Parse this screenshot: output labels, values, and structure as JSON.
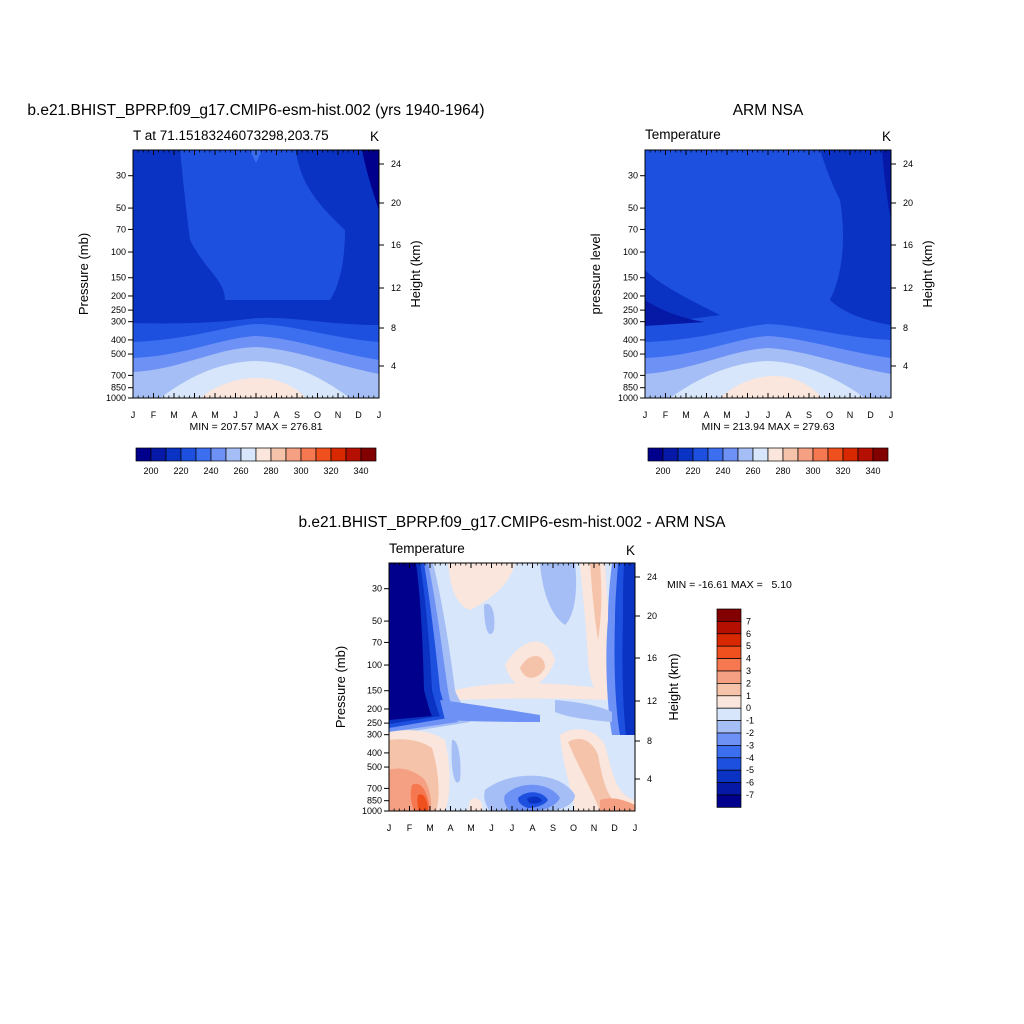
{
  "chart_data": [
    {
      "type": "contour",
      "title": "b.e21.BHIST_BPRP.f09_g17.CMIP6-esm-hist.002 (yrs 1940-1964)",
      "left_label": "T at 71.15183246073298,203.75",
      "right_label": "K",
      "ylabel": "Pressure (mb)",
      "ylabel_right": "Height (km)",
      "x_ticks": [
        "J",
        "F",
        "M",
        "A",
        "M",
        "J",
        "J",
        "A",
        "S",
        "O",
        "N",
        "D",
        "J"
      ],
      "y_ticks": [
        "30",
        "50",
        "70",
        "100",
        "150",
        "200",
        "250",
        "300",
        "400",
        "500",
        "700",
        "850",
        "1000"
      ],
      "y_ticks_right": [
        "24",
        "20",
        "16",
        "12",
        "8",
        "4"
      ],
      "min": 207.57,
      "max": 276.81,
      "minmax_text": "MIN = 207.57 MAX = 276.81",
      "colorbar_labels": [
        "200",
        "220",
        "240",
        "260",
        "280",
        "300",
        "320",
        "340"
      ]
    },
    {
      "type": "contour",
      "title": "ARM NSA",
      "left_label": "Temperature",
      "right_label": "K",
      "ylabel": "pressure level",
      "ylabel_right": "Height (km)",
      "x_ticks": [
        "J",
        "F",
        "M",
        "A",
        "M",
        "J",
        "J",
        "A",
        "S",
        "O",
        "N",
        "D",
        "J"
      ],
      "y_ticks": [
        "30",
        "50",
        "70",
        "100",
        "150",
        "200",
        "250",
        "300",
        "400",
        "500",
        "700",
        "850",
        "1000"
      ],
      "y_ticks_right": [
        "24",
        "20",
        "16",
        "12",
        "8",
        "4"
      ],
      "min": 213.94,
      "max": 279.63,
      "minmax_text": "MIN = 213.94 MAX = 279.63",
      "colorbar_labels": [
        "200",
        "220",
        "240",
        "260",
        "280",
        "300",
        "320",
        "340"
      ]
    },
    {
      "type": "contour",
      "title": "b.e21.BHIST_BPRP.f09_g17.CMIP6-esm-hist.002 - ARM NSA",
      "left_label": "Temperature",
      "right_label": "K",
      "ylabel": "Pressure (mb)",
      "ylabel_right": "Height (km)",
      "x_ticks": [
        "J",
        "F",
        "M",
        "A",
        "M",
        "J",
        "J",
        "A",
        "S",
        "O",
        "N",
        "D",
        "J"
      ],
      "y_ticks": [
        "30",
        "50",
        "70",
        "100",
        "150",
        "200",
        "250",
        "300",
        "400",
        "500",
        "700",
        "850",
        "1000"
      ],
      "y_ticks_right": [
        "24",
        "20",
        "16",
        "12",
        "8",
        "4"
      ],
      "min": -16.61,
      "max": 5.1,
      "minmax_text": "MIN = -16.61 MAX =   5.10",
      "colorbar_labels": [
        "7",
        "6",
        "5",
        "4",
        "3",
        "2",
        "1",
        "0",
        "-1",
        "-2",
        "-3",
        "-4",
        "-5",
        "-6",
        "-7"
      ]
    }
  ],
  "colors": {
    "abs_palette": [
      "#00008c",
      "#0519a6",
      "#0a32c3",
      "#1e50e0",
      "#3c6ef0",
      "#6e91f5",
      "#a5bef5",
      "#d7e6fa",
      "#fae6dc",
      "#f5c3aa",
      "#f5a082",
      "#f57850",
      "#f0501e",
      "#d72800",
      "#b40f00",
      "#820000"
    ],
    "diff_palette": [
      "#820000",
      "#b40f00",
      "#d72800",
      "#f0501e",
      "#f57850",
      "#f5a082",
      "#f5c3aa",
      "#fae6dc",
      "#d7e6fa",
      "#a5bef5",
      "#6e91f5",
      "#3c6ef0",
      "#1e50e0",
      "#0a32c3",
      "#0519a6",
      "#00008c"
    ]
  }
}
